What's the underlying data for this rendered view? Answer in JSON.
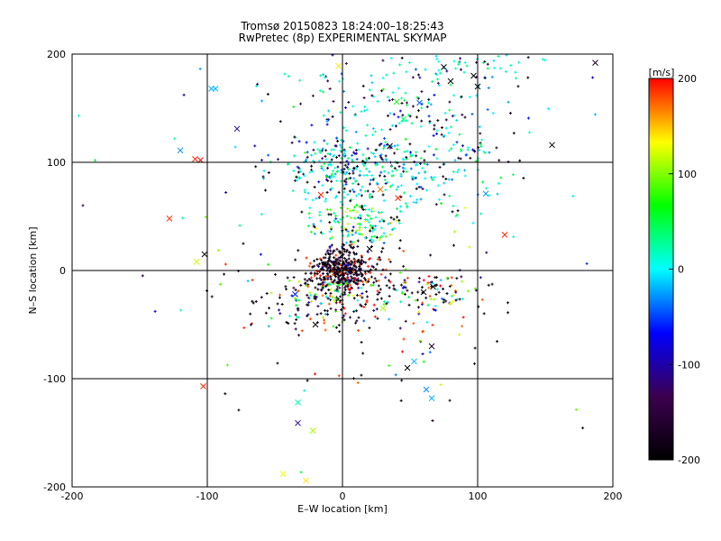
{
  "chart_data": {
    "type": "scatter",
    "title": "Tromsø 20150823 18:24:00–18:25:43",
    "subtitle": "RwPretec (8p) EXPERIMENTAL SKYMAP",
    "xlabel": "E–W location [km]",
    "ylabel": "N–S location [km]",
    "xlim": [
      -200,
      200
    ],
    "ylim": [
      -200,
      200
    ],
    "xticks": [
      -200,
      -100,
      0,
      100,
      200
    ],
    "yticks": [
      -200,
      -100,
      0,
      100,
      200
    ],
    "grid": "lines at x=-100,0,100 and y=-100,0,100",
    "colorbar": {
      "label": "[m/s]",
      "range": [
        -200,
        200
      ],
      "ticks": [
        -200,
        -100,
        0,
        100,
        200
      ],
      "colors": [
        "#000000",
        "#3c0050",
        "#0000ff",
        "#00ffff",
        "#00ff00",
        "#ffff00",
        "#ff0000"
      ]
    },
    "markers": {
      "small": "plus",
      "large": "cross"
    },
    "clusters": [
      {
        "x": 0,
        "y": 0,
        "sx": 12,
        "sy": 10,
        "n": 420
      },
      {
        "x": 5,
        "y": 95,
        "sx": 28,
        "sy": 15,
        "n": 300
      },
      {
        "x": 10,
        "y": 45,
        "sx": 18,
        "sy": 15,
        "n": 170
      },
      {
        "x": -10,
        "y": -25,
        "sx": 32,
        "sy": 14,
        "n": 220
      },
      {
        "x": 70,
        "y": -20,
        "sx": 22,
        "sy": 12,
        "n": 90
      },
      {
        "x": 80,
        "y": 100,
        "sx": 25,
        "sy": 25,
        "n": 110
      },
      {
        "x": 40,
        "y": 150,
        "sx": 35,
        "sy": 25,
        "n": 150
      },
      {
        "x": 90,
        "y": 190,
        "sx": 35,
        "sy": 10,
        "n": 60
      },
      {
        "x": 20,
        "y": -70,
        "sx": 50,
        "sy": 35,
        "n": 50
      },
      {
        "x": 0,
        "y": 60,
        "sx": 90,
        "sy": 90,
        "n": 90
      }
    ],
    "large_points": [
      {
        "x": -94,
        "y": 168,
        "v": -20
      },
      {
        "x": -97,
        "y": 168,
        "v": -20
      },
      {
        "x": -78,
        "y": 131,
        "v": -110
      },
      {
        "x": -120,
        "y": 111,
        "v": -30
      },
      {
        "x": -109,
        "y": 103,
        "v": 190
      },
      {
        "x": -105,
        "y": 102,
        "v": 200
      },
      {
        "x": -128,
        "y": 48,
        "v": 185
      },
      {
        "x": -108,
        "y": 8,
        "v": 120
      },
      {
        "x": -102,
        "y": 15,
        "v": -200
      },
      {
        "x": -103,
        "y": -107,
        "v": 190
      },
      {
        "x": -33,
        "y": -122,
        "v": 20
      },
      {
        "x": -33,
        "y": -141,
        "v": -110
      },
      {
        "x": -22,
        "y": -148,
        "v": 110
      },
      {
        "x": -44,
        "y": -188,
        "v": 130
      },
      {
        "x": -27,
        "y": -194,
        "v": 140
      },
      {
        "x": -3,
        "y": 189,
        "v": 140
      },
      {
        "x": 120,
        "y": 33,
        "v": 190
      },
      {
        "x": 155,
        "y": 116,
        "v": -200
      },
      {
        "x": 187,
        "y": 192,
        "v": -170
      },
      {
        "x": 106,
        "y": 71,
        "v": -30
      },
      {
        "x": 62,
        "y": -110,
        "v": -30
      },
      {
        "x": 66,
        "y": -118,
        "v": -20
      },
      {
        "x": 66,
        "y": -70,
        "v": -170
      },
      {
        "x": 53,
        "y": -84,
        "v": -20
      },
      {
        "x": 48,
        "y": -90,
        "v": -200
      },
      {
        "x": 67,
        "y": -15,
        "v": -200
      },
      {
        "x": 60,
        "y": -20,
        "v": -200
      },
      {
        "x": 100,
        "y": 170,
        "v": -200
      },
      {
        "x": 97,
        "y": 180,
        "v": -200
      },
      {
        "x": 40,
        "y": 156,
        "v": 70
      },
      {
        "x": 57,
        "y": 155,
        "v": -40
      },
      {
        "x": 80,
        "y": 175,
        "v": -200
      },
      {
        "x": 75,
        "y": 188,
        "v": -200
      },
      {
        "x": 35,
        "y": 115,
        "v": -200
      },
      {
        "x": 45,
        "y": 140,
        "v": 40
      },
      {
        "x": -16,
        "y": 70,
        "v": 190
      },
      {
        "x": 28,
        "y": 75,
        "v": 170
      },
      {
        "x": 41,
        "y": 67,
        "v": 190
      },
      {
        "x": 20,
        "y": 20,
        "v": -200
      },
      {
        "x": -20,
        "y": -50,
        "v": -200
      },
      {
        "x": -35,
        "y": -22,
        "v": -60
      },
      {
        "x": 30,
        "y": -35,
        "v": 110
      }
    ]
  }
}
